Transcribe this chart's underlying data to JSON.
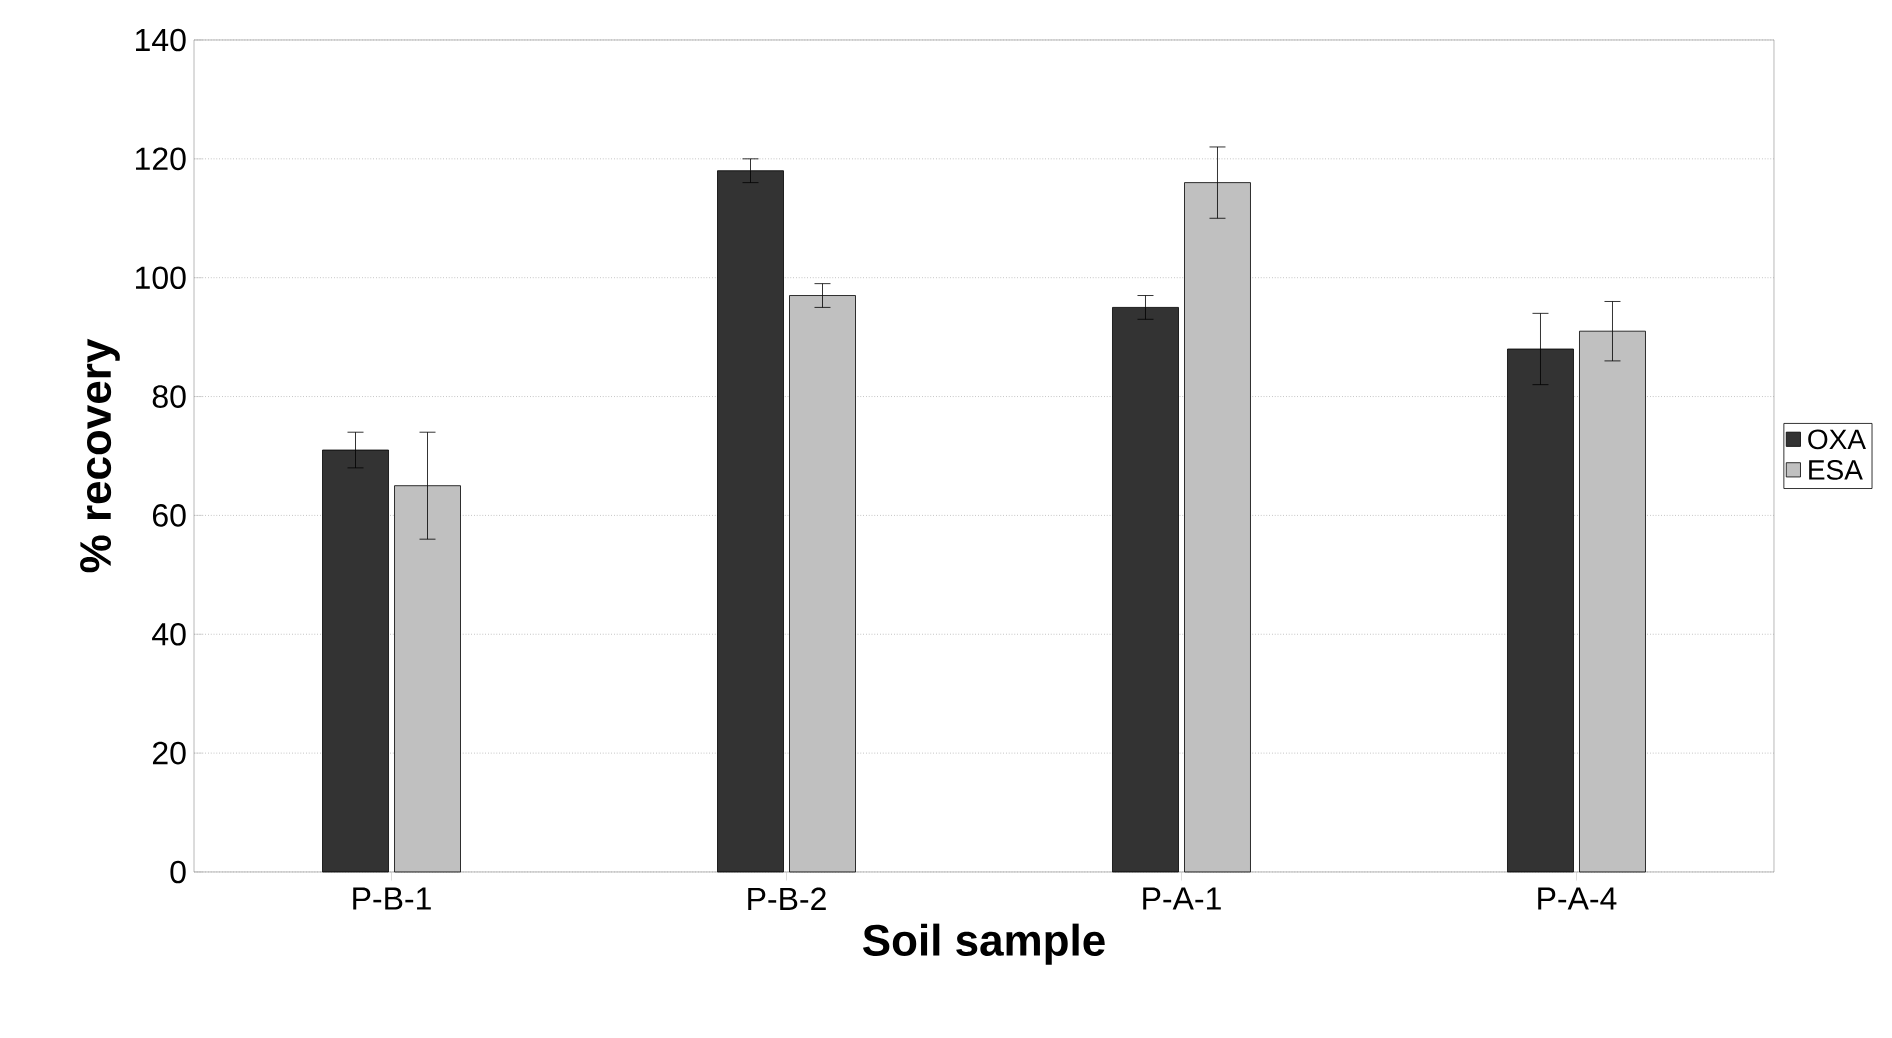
{
  "chart_data": {
    "type": "bar",
    "xlabel": "Soil sample",
    "ylabel": "% recovery",
    "categories": [
      "P-B-1",
      "P-B-2",
      "P-A-1",
      "P-A-4"
    ],
    "series": [
      {
        "name": "OXA",
        "color": "#333333",
        "values": [
          71,
          118,
          95,
          88
        ],
        "errors": [
          3,
          2,
          2,
          6
        ]
      },
      {
        "name": "ESA",
        "color": "#c0c0c0",
        "values": [
          65,
          97,
          116,
          91
        ],
        "errors": [
          9,
          2,
          6,
          5
        ]
      }
    ],
    "ylim": [
      0,
      140
    ],
    "yticks": [
      0,
      20,
      40,
      60,
      80,
      100,
      120,
      140
    ],
    "grid": "y",
    "legend": "right"
  }
}
